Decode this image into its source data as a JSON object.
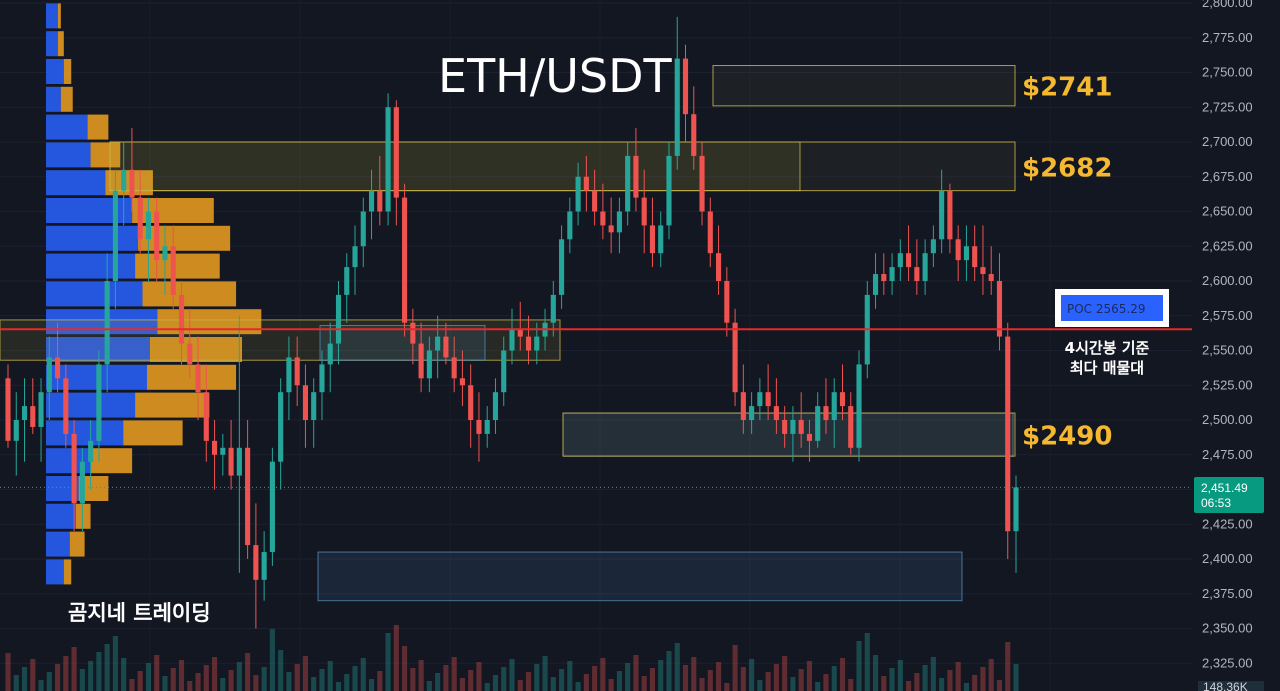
{
  "title": "ETH/USDT",
  "watermark": "곰지네 트레이딩",
  "colors": {
    "background": "#131722",
    "up": "#26a69a",
    "down": "#ef5350",
    "gold": "#f5b82e",
    "poc_line": "#e52a2a",
    "vp_blue": "#2962ff",
    "vp_orange": "#f0a020",
    "axis_text": "#b2b5be"
  },
  "poc": {
    "label": "POC  2565.29",
    "price": 2565.29,
    "note_line1": "4시간봉 기준",
    "note_line2": "최다 매물대"
  },
  "levels": [
    {
      "price_label": "$2741",
      "top": 2755,
      "bottom": 2726
    },
    {
      "price_label": "$2682",
      "top": 2700,
      "bottom": 2665
    },
    {
      "price_label": "$2490",
      "top": 2505,
      "bottom": 2474
    }
  ],
  "zones": [
    {
      "top": 2700,
      "bottom": 2665,
      "kind": "supply"
    },
    {
      "top": 2572,
      "bottom": 2543,
      "kind": "supply"
    },
    {
      "top": 2568,
      "bottom": 2543,
      "kind": "demand"
    },
    {
      "top": 2505,
      "bottom": 2474,
      "kind": "demand"
    },
    {
      "top": 2405,
      "bottom": 2370,
      "kind": "demand"
    }
  ],
  "current": {
    "price": "2,451.49",
    "countdown": "06:53"
  },
  "volume_label": "148.36K",
  "chart_data": {
    "type": "candlestick",
    "y_axis_ticks": [
      2800,
      2775,
      2750,
      2725,
      2700,
      2675,
      2650,
      2625,
      2600,
      2575,
      2550,
      2525,
      2500,
      2475,
      2450,
      2425,
      2400,
      2375,
      2350,
      2325
    ],
    "y_axis_labels": [
      "2,800.00",
      "2,775.00",
      "2,750.00",
      "2,725.00",
      "2,700.00",
      "2,675.00",
      "2,650.00",
      "2,625.00",
      "2,600.00",
      "2,575.00",
      "2,550.00",
      "2,525.00",
      "2,500.00",
      "2,475.00",
      "2,450.00",
      "2,425.00",
      "2,400.00",
      "2,375.00",
      "2,350.00",
      "2,325.00"
    ],
    "ylim": [
      2312,
      2802
    ],
    "candles": [
      [
        2530,
        2540,
        2480,
        2485
      ],
      [
        2485,
        2520,
        2460,
        2500
      ],
      [
        2500,
        2530,
        2470,
        2510
      ],
      [
        2510,
        2530,
        2490,
        2495
      ],
      [
        2495,
        2530,
        2470,
        2520
      ],
      [
        2520,
        2560,
        2500,
        2545
      ],
      [
        2545,
        2570,
        2520,
        2530
      ],
      [
        2530,
        2540,
        2480,
        2490
      ],
      [
        2490,
        2500,
        2420,
        2440
      ],
      [
        2440,
        2480,
        2420,
        2470
      ],
      [
        2470,
        2500,
        2450,
        2485
      ],
      [
        2485,
        2550,
        2470,
        2540
      ],
      [
        2540,
        2620,
        2520,
        2600
      ],
      [
        2600,
        2680,
        2580,
        2665
      ],
      [
        2665,
        2700,
        2640,
        2680
      ],
      [
        2680,
        2710,
        2650,
        2660
      ],
      [
        2660,
        2680,
        2620,
        2630
      ],
      [
        2630,
        2660,
        2600,
        2650
      ],
      [
        2650,
        2660,
        2600,
        2615
      ],
      [
        2615,
        2640,
        2590,
        2625
      ],
      [
        2625,
        2640,
        2580,
        2590
      ],
      [
        2590,
        2600,
        2540,
        2555
      ],
      [
        2555,
        2580,
        2530,
        2540
      ],
      [
        2540,
        2560,
        2500,
        2520
      ],
      [
        2520,
        2540,
        2470,
        2485
      ],
      [
        2485,
        2500,
        2450,
        2475
      ],
      [
        2475,
        2490,
        2460,
        2480
      ],
      [
        2480,
        2500,
        2450,
        2460
      ],
      [
        2460,
        2575,
        2390,
        2480
      ],
      [
        2480,
        2500,
        2400,
        2410
      ],
      [
        2410,
        2440,
        2350,
        2385
      ],
      [
        2385,
        2420,
        2370,
        2405
      ],
      [
        2405,
        2480,
        2395,
        2470
      ],
      [
        2470,
        2530,
        2450,
        2520
      ],
      [
        2520,
        2560,
        2500,
        2545
      ],
      [
        2545,
        2560,
        2510,
        2525
      ],
      [
        2525,
        2540,
        2480,
        2500
      ],
      [
        2500,
        2530,
        2480,
        2520
      ],
      [
        2520,
        2550,
        2500,
        2540
      ],
      [
        2540,
        2570,
        2520,
        2555
      ],
      [
        2555,
        2600,
        2540,
        2590
      ],
      [
        2590,
        2620,
        2570,
        2610
      ],
      [
        2610,
        2640,
        2590,
        2625
      ],
      [
        2625,
        2660,
        2610,
        2650
      ],
      [
        2650,
        2680,
        2630,
        2665
      ],
      [
        2665,
        2690,
        2640,
        2650
      ],
      [
        2650,
        2735,
        2640,
        2725
      ],
      [
        2725,
        2730,
        2640,
        2660
      ],
      [
        2660,
        2670,
        2560,
        2570
      ],
      [
        2570,
        2580,
        2540,
        2555
      ],
      [
        2555,
        2570,
        2520,
        2530
      ],
      [
        2530,
        2560,
        2520,
        2550
      ],
      [
        2550,
        2575,
        2530,
        2560
      ],
      [
        2560,
        2570,
        2540,
        2545
      ],
      [
        2545,
        2560,
        2520,
        2530
      ],
      [
        2530,
        2550,
        2510,
        2525
      ],
      [
        2525,
        2540,
        2480,
        2500
      ],
      [
        2500,
        2520,
        2470,
        2490
      ],
      [
        2490,
        2510,
        2480,
        2500
      ],
      [
        2500,
        2530,
        2490,
        2520
      ],
      [
        2520,
        2560,
        2510,
        2550
      ],
      [
        2550,
        2580,
        2540,
        2565
      ],
      [
        2565,
        2585,
        2550,
        2560
      ],
      [
        2560,
        2575,
        2540,
        2550
      ],
      [
        2550,
        2570,
        2540,
        2560
      ],
      [
        2560,
        2580,
        2550,
        2570
      ],
      [
        2570,
        2600,
        2560,
        2590
      ],
      [
        2590,
        2640,
        2580,
        2630
      ],
      [
        2630,
        2660,
        2620,
        2650
      ],
      [
        2650,
        2685,
        2640,
        2675
      ],
      [
        2675,
        2690,
        2650,
        2665
      ],
      [
        2665,
        2680,
        2640,
        2650
      ],
      [
        2650,
        2670,
        2630,
        2640
      ],
      [
        2640,
        2660,
        2620,
        2635
      ],
      [
        2635,
        2660,
        2620,
        2650
      ],
      [
        2650,
        2700,
        2640,
        2690
      ],
      [
        2690,
        2710,
        2650,
        2660
      ],
      [
        2660,
        2680,
        2620,
        2640
      ],
      [
        2640,
        2660,
        2610,
        2620
      ],
      [
        2620,
        2650,
        2610,
        2640
      ],
      [
        2640,
        2700,
        2630,
        2690
      ],
      [
        2690,
        2790,
        2680,
        2760
      ],
      [
        2760,
        2770,
        2700,
        2720
      ],
      [
        2720,
        2740,
        2680,
        2690
      ],
      [
        2690,
        2700,
        2640,
        2650
      ],
      [
        2650,
        2660,
        2610,
        2620
      ],
      [
        2620,
        2640,
        2590,
        2600
      ],
      [
        2600,
        2610,
        2560,
        2570
      ],
      [
        2570,
        2580,
        2510,
        2520
      ],
      [
        2520,
        2540,
        2490,
        2500
      ],
      [
        2500,
        2520,
        2490,
        2510
      ],
      [
        2510,
        2530,
        2500,
        2520
      ],
      [
        2520,
        2540,
        2500,
        2510
      ],
      [
        2510,
        2530,
        2490,
        2500
      ],
      [
        2500,
        2510,
        2480,
        2490
      ],
      [
        2490,
        2510,
        2470,
        2500
      ],
      [
        2500,
        2520,
        2480,
        2490
      ],
      [
        2490,
        2500,
        2470,
        2485
      ],
      [
        2485,
        2520,
        2480,
        2510
      ],
      [
        2510,
        2530,
        2490,
        2500
      ],
      [
        2500,
        2530,
        2480,
        2520
      ],
      [
        2520,
        2540,
        2500,
        2510
      ],
      [
        2510,
        2520,
        2475,
        2480
      ],
      [
        2480,
        2550,
        2470,
        2540
      ],
      [
        2540,
        2600,
        2530,
        2590
      ],
      [
        2590,
        2620,
        2580,
        2605
      ],
      [
        2605,
        2620,
        2590,
        2600
      ],
      [
        2600,
        2620,
        2590,
        2610
      ],
      [
        2610,
        2630,
        2600,
        2620
      ],
      [
        2620,
        2640,
        2600,
        2610
      ],
      [
        2610,
        2630,
        2590,
        2600
      ],
      [
        2600,
        2630,
        2590,
        2620
      ],
      [
        2620,
        2640,
        2610,
        2630
      ],
      [
        2630,
        2680,
        2620,
        2665
      ],
      [
        2665,
        2670,
        2620,
        2630
      ],
      [
        2630,
        2640,
        2600,
        2615
      ],
      [
        2615,
        2640,
        2600,
        2625
      ],
      [
        2625,
        2640,
        2600,
        2610
      ],
      [
        2610,
        2640,
        2590,
        2605
      ],
      [
        2605,
        2625,
        2590,
        2600
      ],
      [
        2600,
        2620,
        2550,
        2560
      ],
      [
        2560,
        2570,
        2400,
        2420
      ],
      [
        2420,
        2460,
        2390,
        2451.49
      ]
    ],
    "volume_profile": [
      {
        "price": 2790,
        "blue": 0.08,
        "orange": 0.02
      },
      {
        "price": 2770,
        "blue": 0.08,
        "orange": 0.04
      },
      {
        "price": 2750,
        "blue": 0.12,
        "orange": 0.05
      },
      {
        "price": 2730,
        "blue": 0.1,
        "orange": 0.08
      },
      {
        "price": 2710,
        "blue": 0.28,
        "orange": 0.14
      },
      {
        "price": 2690,
        "blue": 0.3,
        "orange": 0.2
      },
      {
        "price": 2670,
        "blue": 0.4,
        "orange": 0.32
      },
      {
        "price": 2650,
        "blue": 0.58,
        "orange": 0.55
      },
      {
        "price": 2630,
        "blue": 0.62,
        "orange": 0.62
      },
      {
        "price": 2610,
        "blue": 0.6,
        "orange": 0.57
      },
      {
        "price": 2590,
        "blue": 0.65,
        "orange": 0.63
      },
      {
        "price": 2570,
        "blue": 0.75,
        "orange": 0.7
      },
      {
        "price": 2550,
        "blue": 0.7,
        "orange": 0.62
      },
      {
        "price": 2530,
        "blue": 0.68,
        "orange": 0.6
      },
      {
        "price": 2510,
        "blue": 0.6,
        "orange": 0.5
      },
      {
        "price": 2490,
        "blue": 0.52,
        "orange": 0.4
      },
      {
        "price": 2470,
        "blue": 0.3,
        "orange": 0.28
      },
      {
        "price": 2450,
        "blue": 0.22,
        "orange": 0.2
      },
      {
        "price": 2430,
        "blue": 0.2,
        "orange": 0.1
      },
      {
        "price": 2410,
        "blue": 0.16,
        "orange": 0.1
      },
      {
        "price": 2390,
        "blue": 0.12,
        "orange": 0.05
      }
    ]
  }
}
